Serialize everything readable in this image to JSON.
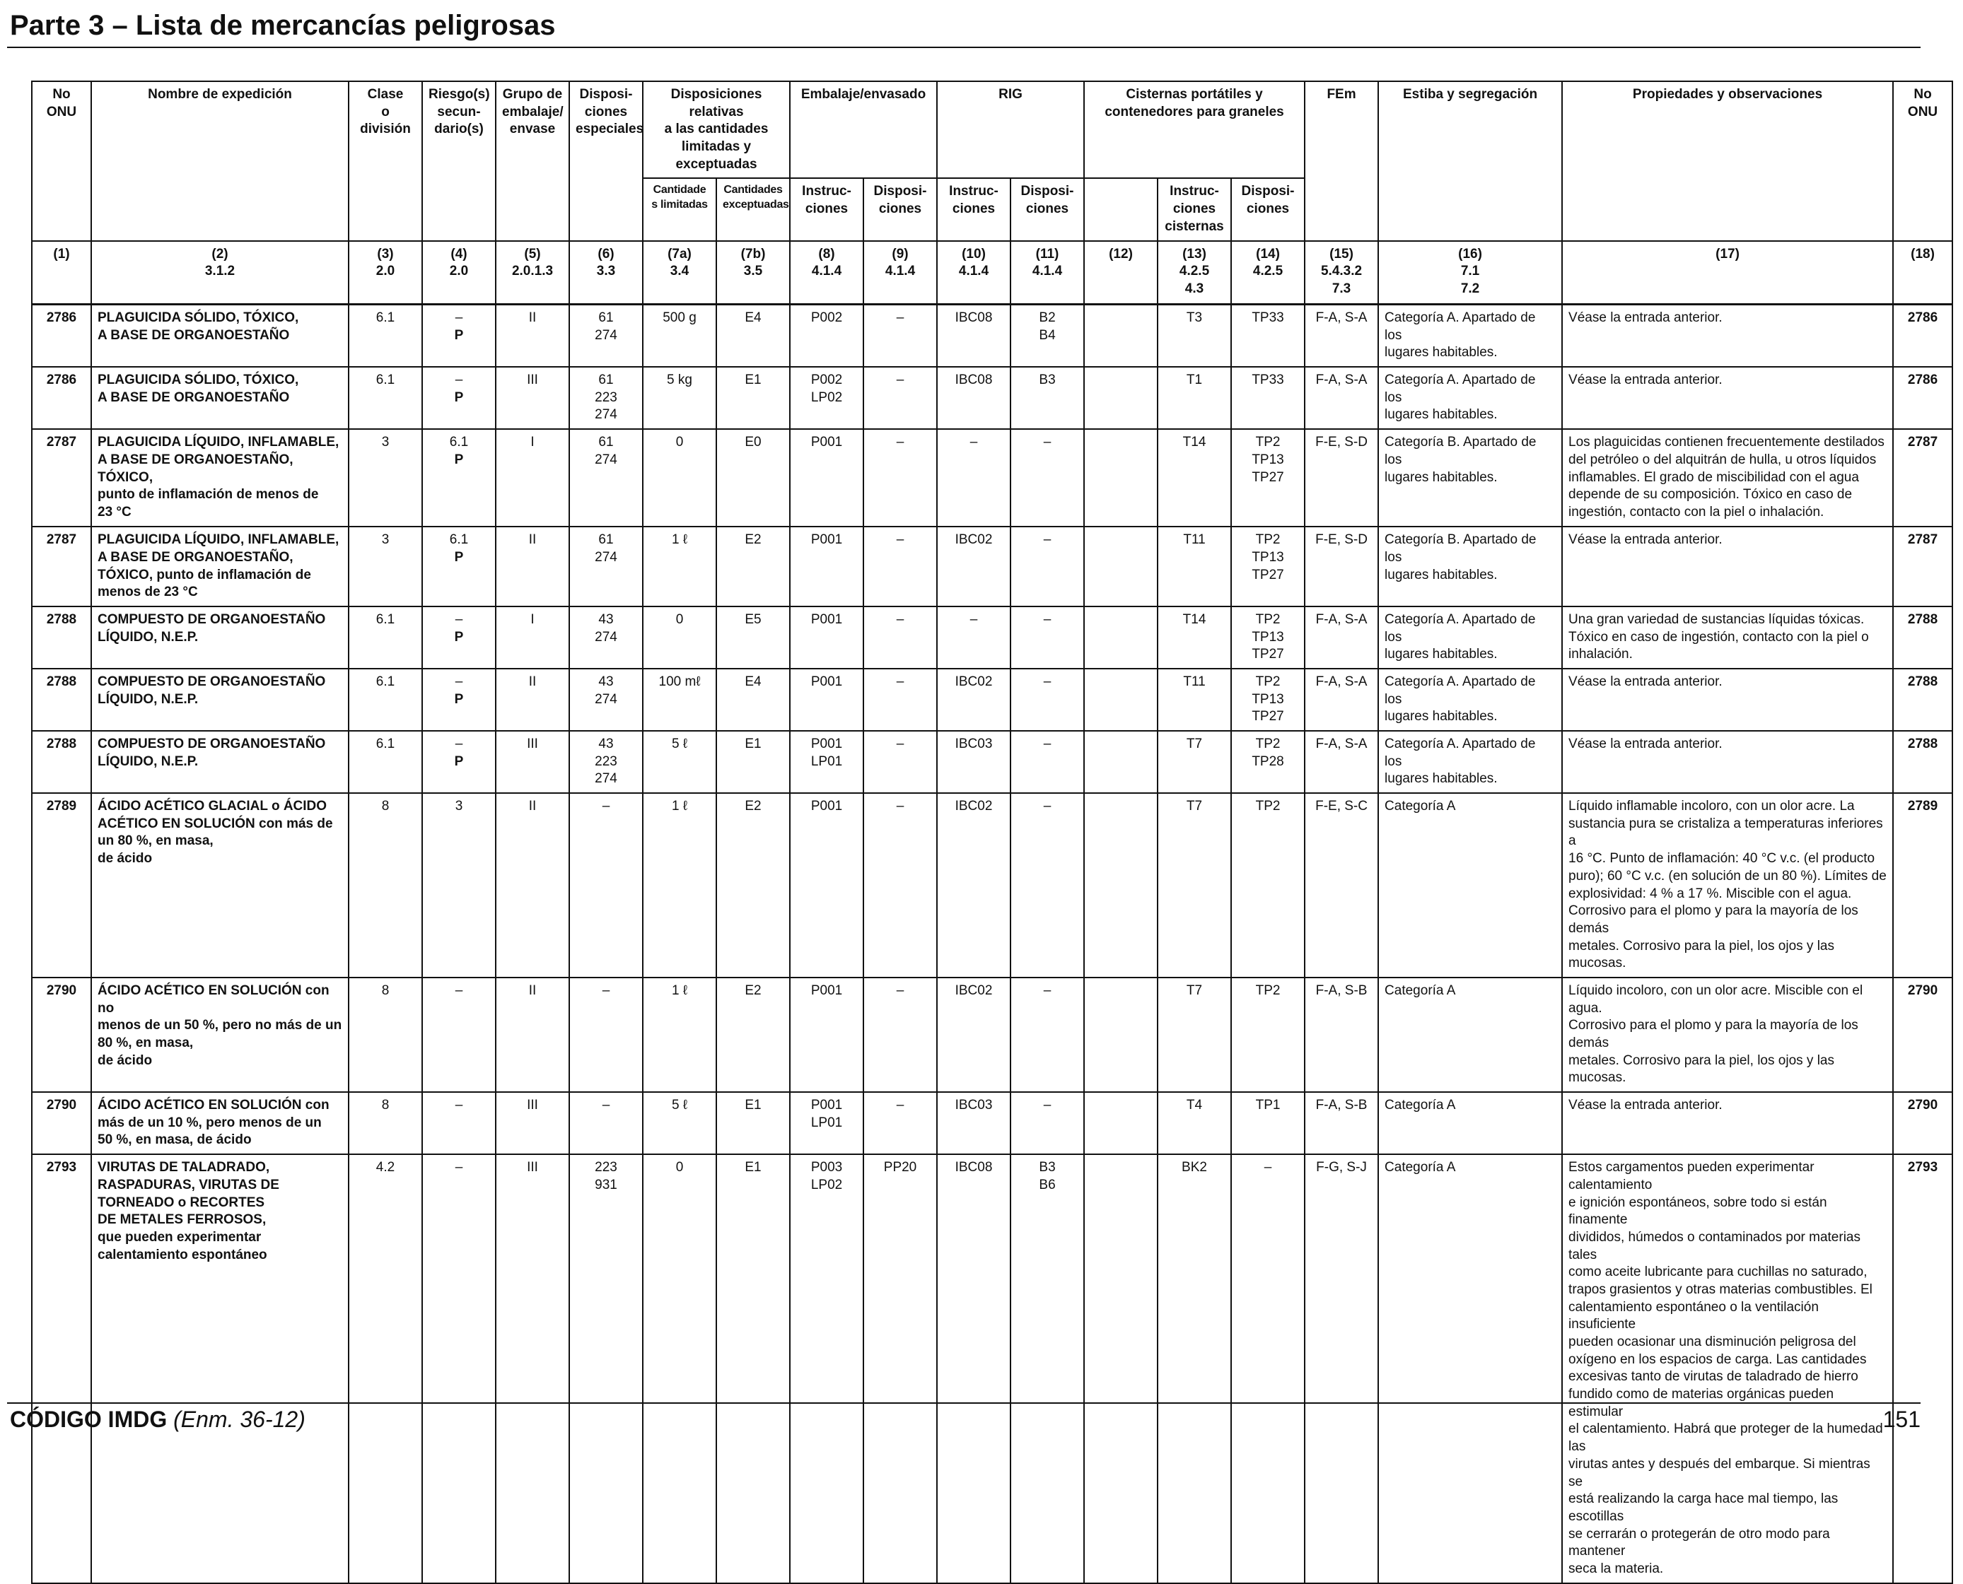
{
  "page": {
    "title": "Parte 3 – Lista de mercancías peligrosas",
    "footer_code": "CÓDIGO IMDG",
    "footer_edition": "(Enm. 36-12)",
    "page_number": "151"
  },
  "headers": {
    "h1": [
      "No",
      "ONU"
    ],
    "h2": [
      "Nombre de expedición"
    ],
    "h3": [
      "Clase",
      "o",
      "división"
    ],
    "h4": [
      "Riesgo(s)",
      "secun-",
      "dario(s)"
    ],
    "h5": [
      "Grupo de",
      "embalaje/",
      "envase"
    ],
    "h6": [
      "Disposi-",
      "ciones",
      "especiales"
    ],
    "h7": [
      "Disposiciones relativas",
      "a las cantidades",
      "limitadas y exceptuadas"
    ],
    "h7a": [
      "Cantidade",
      "s limitadas"
    ],
    "h7b": [
      "Cantidades",
      "exceptuadas"
    ],
    "h8_9": [
      "Embalaje/envasado"
    ],
    "h8": [
      "Instruc-",
      "ciones"
    ],
    "h9": [
      "Disposi-",
      "ciones"
    ],
    "h10_11": [
      "RIG"
    ],
    "h10": [
      "Instruc-",
      "ciones"
    ],
    "h11": [
      "Disposi-",
      "ciones"
    ],
    "h12_14": [
      "Cisternas portátiles y",
      "contenedores para graneles"
    ],
    "h13": [
      "Instruc-",
      "ciones",
      "cisternas"
    ],
    "h14": [
      "Disposi-",
      "ciones"
    ],
    "h15": [
      "FEm"
    ],
    "h16": [
      "Estiba y segregación"
    ],
    "h17": [
      "Propiedades y observaciones"
    ],
    "h18": [
      "No",
      "ONU"
    ]
  },
  "colnums": [
    [
      "(1)"
    ],
    [
      "(2)",
      "3.1.2"
    ],
    [
      "(3)",
      "2.0"
    ],
    [
      "(4)",
      "2.0"
    ],
    [
      "(5)",
      "2.0.1.3"
    ],
    [
      "(6)",
      "3.3"
    ],
    [
      "(7a)",
      "3.4"
    ],
    [
      "(7b)",
      "3.5"
    ],
    [
      "(8)",
      "4.1.4"
    ],
    [
      "(9)",
      "4.1.4"
    ],
    [
      "(10)",
      "4.1.4"
    ],
    [
      "(11)",
      "4.1.4"
    ],
    [
      "(12)"
    ],
    [
      "(13)",
      "4.2.5",
      "4.3"
    ],
    [
      "(14)",
      "4.2.5"
    ],
    [
      "(15)",
      "5.4.3.2",
      "7.3"
    ],
    [
      "(16)",
      "7.1",
      "7.2"
    ],
    [
      "(17)"
    ],
    [
      "(18)"
    ]
  ],
  "rows": [
    {
      "un": "2786",
      "name": [
        "PLAGUICIDA SÓLIDO, TÓXICO,",
        "A BASE DE ORGANOESTAÑO"
      ],
      "clase": "6.1",
      "riesgo": [
        "–"
      ],
      "marine": "P",
      "grupo": "II",
      "disp": [
        "61",
        "274"
      ],
      "cl": "500 g",
      "ce": "E4",
      "emb_ins": [
        "P002"
      ],
      "emb_disp": [
        "–"
      ],
      "rig_ins": "IBC08",
      "rig_disp": [
        "B2",
        "B4"
      ],
      "c12": "",
      "cist_ins": [
        "T3"
      ],
      "cist_disp": [
        "TP33"
      ],
      "fem": "F-A, S-A",
      "estiba": [
        "Categoría A. Apartado de los",
        "lugares habitables."
      ],
      "prop": [
        "Véase la entrada anterior."
      ]
    },
    {
      "un": "2786",
      "name": [
        "PLAGUICIDA SÓLIDO, TÓXICO,",
        "A BASE DE ORGANOESTAÑO"
      ],
      "clase": "6.1",
      "riesgo": [
        "–"
      ],
      "marine": "P",
      "grupo": "III",
      "disp": [
        "61",
        "223",
        "274"
      ],
      "cl": "5 kg",
      "ce": "E1",
      "emb_ins": [
        "P002",
        "LP02"
      ],
      "emb_disp": [
        "–"
      ],
      "rig_ins": "IBC08",
      "rig_disp": [
        "B3"
      ],
      "c12": "",
      "cist_ins": [
        "T1"
      ],
      "cist_disp": [
        "TP33"
      ],
      "fem": "F-A, S-A",
      "estiba": [
        "Categoría A. Apartado de los",
        "lugares habitables."
      ],
      "prop": [
        "Véase la entrada anterior."
      ]
    },
    {
      "un": "2787",
      "name": [
        "PLAGUICIDA LÍQUIDO, INFLAMABLE,",
        "A BASE DE ORGANOESTAÑO,",
        "TÓXICO,",
        "punto de inflamación de menos de",
        "23 °C"
      ],
      "clase": "3",
      "riesgo": [
        "6.1"
      ],
      "marine": "P",
      "grupo": "I",
      "disp": [
        "61",
        "274"
      ],
      "cl": "0",
      "ce": "E0",
      "emb_ins": [
        "P001"
      ],
      "emb_disp": [
        "–"
      ],
      "rig_ins": "–",
      "rig_disp": [
        "–"
      ],
      "c12": "",
      "cist_ins": [
        "T14"
      ],
      "cist_disp": [
        "TP2",
        "TP13",
        "TP27"
      ],
      "fem": "F-E, S-D",
      "estiba": [
        "Categoría B. Apartado de los",
        "lugares habitables."
      ],
      "prop": [
        "Los plaguicidas contienen frecuentemente destilados",
        "del petróleo o del alquitrán de hulla, u otros líquidos",
        "inflamables. El grado de miscibilidad con el agua",
        "depende de su composición. Tóxico en caso de",
        "ingestión, contacto con la piel o inhalación."
      ]
    },
    {
      "un": "2787",
      "name": [
        "PLAGUICIDA LÍQUIDO, INFLAMABLE,",
        "A BASE DE ORGANOESTAÑO,",
        "TÓXICO, punto de inflamación de",
        "menos de 23 °C"
      ],
      "clase": "3",
      "riesgo": [
        "6.1"
      ],
      "marine": "P",
      "grupo": "II",
      "disp": [
        "61",
        "274"
      ],
      "cl": "1 ℓ",
      "ce": "E2",
      "emb_ins": [
        "P001"
      ],
      "emb_disp": [
        "–"
      ],
      "rig_ins": "IBC02",
      "rig_disp": [
        "–"
      ],
      "c12": "",
      "cist_ins": [
        "T11"
      ],
      "cist_disp": [
        "TP2",
        "TP13",
        "TP27"
      ],
      "fem": "F-E, S-D",
      "estiba": [
        "Categoría B. Apartado de los",
        "lugares habitables."
      ],
      "prop": [
        "Véase la entrada anterior."
      ]
    },
    {
      "un": "2788",
      "name": [
        "COMPUESTO DE ORGANOESTAÑO",
        "LÍQUIDO, N.E.P."
      ],
      "clase": "6.1",
      "riesgo": [
        "–"
      ],
      "marine": "P",
      "grupo": "I",
      "disp": [
        "43",
        "274"
      ],
      "cl": "0",
      "ce": "E5",
      "emb_ins": [
        "P001"
      ],
      "emb_disp": [
        "–"
      ],
      "rig_ins": "–",
      "rig_disp": [
        "–"
      ],
      "c12": "",
      "cist_ins": [
        "T14"
      ],
      "cist_disp": [
        "TP2",
        "TP13",
        "TP27"
      ],
      "fem": "F-A, S-A",
      "estiba": [
        "Categoría A. Apartado de los",
        "lugares habitables."
      ],
      "prop": [
        "Una gran variedad de sustancias líquidas tóxicas.",
        "Tóxico en caso de ingestión, contacto con la piel o",
        "inhalación."
      ]
    },
    {
      "un": "2788",
      "name": [
        "COMPUESTO DE ORGANOESTAÑO",
        "LÍQUIDO, N.E.P."
      ],
      "clase": "6.1",
      "riesgo": [
        "–"
      ],
      "marine": "P",
      "grupo": "II",
      "disp": [
        "43",
        "274"
      ],
      "cl": "100 mℓ",
      "ce": "E4",
      "emb_ins": [
        "P001"
      ],
      "emb_disp": [
        "–"
      ],
      "rig_ins": "IBC02",
      "rig_disp": [
        "–"
      ],
      "c12": "",
      "cist_ins": [
        "T11"
      ],
      "cist_disp": [
        "TP2",
        "TP13",
        "TP27"
      ],
      "fem": "F-A, S-A",
      "estiba": [
        "Categoría A. Apartado de los",
        "lugares habitables."
      ],
      "prop": [
        "Véase la entrada anterior."
      ]
    },
    {
      "un": "2788",
      "name": [
        "COMPUESTO DE ORGANOESTAÑO",
        "LÍQUIDO, N.E.P."
      ],
      "clase": "6.1",
      "riesgo": [
        "–"
      ],
      "marine": "P",
      "grupo": "III",
      "disp": [
        "43",
        "223",
        "274"
      ],
      "cl": "5 ℓ",
      "ce": "E1",
      "emb_ins": [
        "P001",
        "LP01"
      ],
      "emb_disp": [
        "–"
      ],
      "rig_ins": "IBC03",
      "rig_disp": [
        "–"
      ],
      "c12": "",
      "cist_ins": [
        "T7"
      ],
      "cist_disp": [
        "TP2",
        "TP28"
      ],
      "fem": "F-A, S-A",
      "estiba": [
        "Categoría A. Apartado de los",
        "lugares habitables."
      ],
      "prop": [
        "Véase la entrada anterior."
      ]
    },
    {
      "un": "2789",
      "name": [
        "ÁCIDO ACÉTICO GLACIAL o ÁCIDO",
        "ACÉTICO EN SOLUCIÓN con más de",
        "un 80 %, en masa,",
        "de ácido"
      ],
      "clase": "8",
      "riesgo": [
        "3"
      ],
      "marine": "",
      "grupo": "II",
      "disp": [
        "–"
      ],
      "cl": "1 ℓ",
      "ce": "E2",
      "emb_ins": [
        "P001"
      ],
      "emb_disp": [
        "–"
      ],
      "rig_ins": "IBC02",
      "rig_disp": [
        "–"
      ],
      "c12": "",
      "cist_ins": [
        "T7"
      ],
      "cist_disp": [
        "TP2"
      ],
      "fem": "F-E, S-C",
      "estiba": [
        "Categoría A"
      ],
      "prop": [
        "Líquido inflamable incoloro, con un olor acre. La",
        "sustancia pura se cristaliza a temperaturas inferiores a",
        "16 °C. Punto de inflamación: 40 °C v.c. (el producto",
        "puro); 60 °C v.c. (en solución de un 80 %). Límites de",
        "explosividad: 4 % a 17 %. Miscible con el agua.",
        "Corrosivo para el plomo y para la mayoría de los demás",
        "metales. Corrosivo para la piel, los ojos y las mucosas."
      ]
    },
    {
      "un": "2790",
      "name": [
        "ÁCIDO ACÉTICO EN SOLUCIÓN con no",
        "menos de un 50 %, pero no más de un",
        "80 %, en masa,",
        "de ácido"
      ],
      "clase": "8",
      "riesgo": [
        "–"
      ],
      "marine": "",
      "grupo": "II",
      "disp": [
        "–"
      ],
      "cl": "1 ℓ",
      "ce": "E2",
      "emb_ins": [
        "P001"
      ],
      "emb_disp": [
        "–"
      ],
      "rig_ins": "IBC02",
      "rig_disp": [
        "–"
      ],
      "c12": "",
      "cist_ins": [
        "T7"
      ],
      "cist_disp": [
        "TP2"
      ],
      "fem": "F-A, S-B",
      "estiba": [
        "Categoría A"
      ],
      "prop": [
        "Líquido incoloro, con un olor acre. Miscible con el agua.",
        "Corrosivo para el plomo y para la mayoría de los demás",
        "metales. Corrosivo para la piel, los ojos y las mucosas."
      ]
    },
    {
      "un": "2790",
      "name": [
        "ÁCIDO ACÉTICO EN SOLUCIÓN con",
        "más de un 10 %, pero menos de un",
        "50 %, en masa, de ácido"
      ],
      "clase": "8",
      "riesgo": [
        "–"
      ],
      "marine": "",
      "grupo": "III",
      "disp": [
        "–"
      ],
      "cl": "5 ℓ",
      "ce": "E1",
      "emb_ins": [
        "P001",
        "LP01"
      ],
      "emb_disp": [
        "–"
      ],
      "rig_ins": "IBC03",
      "rig_disp": [
        "–"
      ],
      "c12": "",
      "cist_ins": [
        "T4"
      ],
      "cist_disp": [
        "TP1"
      ],
      "fem": "F-A, S-B",
      "estiba": [
        "Categoría A"
      ],
      "prop": [
        "Véase la entrada anterior."
      ]
    },
    {
      "un": "2793",
      "name": [
        "VIRUTAS DE TALADRADO,",
        "RASPADURAS, VIRUTAS DE",
        "TORNEADO o RECORTES",
        "DE METALES FERROSOS,",
        "que pueden experimentar",
        "calentamiento espontáneo"
      ],
      "clase": "4.2",
      "riesgo": [
        "–"
      ],
      "marine": "",
      "grupo": "III",
      "disp": [
        "223",
        "931"
      ],
      "cl": "0",
      "ce": "E1",
      "emb_ins": [
        "P003",
        "LP02"
      ],
      "emb_disp": [
        "PP20"
      ],
      "rig_ins": "IBC08",
      "rig_disp": [
        "B3",
        "B6"
      ],
      "c12": "",
      "cist_ins": [
        "BK2"
      ],
      "cist_disp": [
        "–"
      ],
      "fem": "F-G, S-J",
      "estiba": [
        "Categoría A"
      ],
      "prop": [
        "Estos cargamentos pueden experimentar calentamiento",
        "e ignición espontáneos, sobre todo si están finamente",
        "divididos, húmedos o contaminados por materias tales",
        "como aceite lubricante para cuchillas no saturado,",
        "trapos grasientos y otras materias combustibles. El",
        "calentamiento espontáneo o la ventilación insuficiente",
        "pueden ocasionar una disminución peligrosa del",
        "oxígeno en los espacios de carga. Las cantidades",
        "excesivas tanto de virutas de taladrado de hierro",
        "fundido como de materias orgánicas pueden estimular",
        "el calentamiento. Habrá que proteger de la humedad las",
        "virutas antes y después del embarque. Si mientras se",
        "está realizando la carga hace mal tiempo, las escotillas",
        "se cerrarán o protegerán de otro modo para mantener",
        "seca la materia."
      ]
    }
  ]
}
